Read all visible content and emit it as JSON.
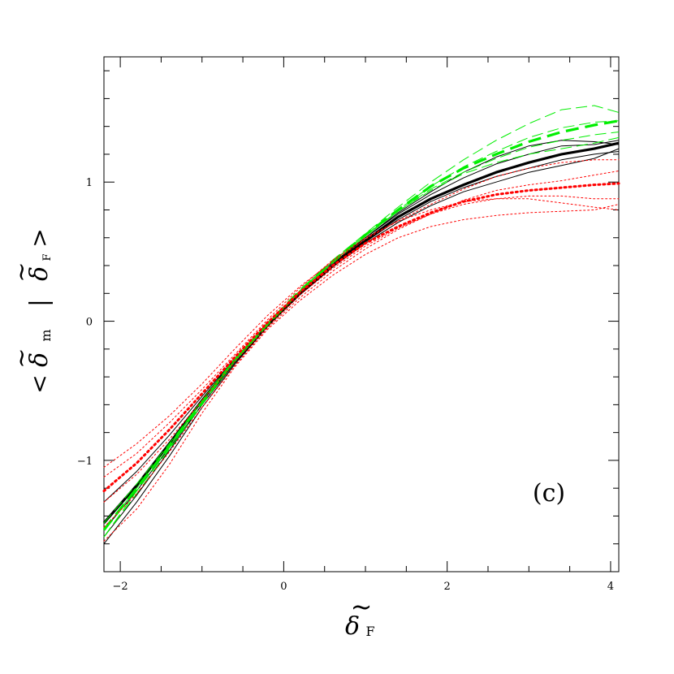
{
  "chart_data": {
    "type": "line",
    "title": "",
    "panel_label": "(c)",
    "xlabel": {
      "symbol": "δ",
      "accent": "~",
      "subscript": "F"
    },
    "ylabel": {
      "open": "<",
      "symbol1": "δ",
      "accent1": "~",
      "subscript1": "m",
      "bar": "|",
      "symbol2": "δ",
      "accent2": "~",
      "subscript2": "F",
      "close": ">"
    },
    "xlim": [
      -2.2,
      4.1
    ],
    "ylim": [
      -1.8,
      1.9
    ],
    "x_ticks": [
      -2,
      0,
      2,
      4
    ],
    "x_tick_labels": [
      "−2",
      "0",
      "2",
      "4"
    ],
    "y_ticks": [
      -1,
      0,
      1
    ],
    "y_tick_labels": [
      "−1",
      "0",
      "1"
    ],
    "x_minor_step": 0.5,
    "y_minor_step": 0.2,
    "grid": false,
    "legend": "none",
    "series": [
      {
        "color": "#000000",
        "width": 3.2,
        "dash": "",
        "opacity": 1,
        "x": [
          -2.2,
          -1.8,
          -1.4,
          -1.0,
          -0.6,
          -0.2,
          0.2,
          0.6,
          1.0,
          1.4,
          1.8,
          2.2,
          2.6,
          3.0,
          3.4,
          3.8,
          4.1
        ],
        "y": [
          -1.45,
          -1.18,
          -0.88,
          -0.57,
          -0.28,
          -0.03,
          0.2,
          0.4,
          0.58,
          0.75,
          0.88,
          0.98,
          1.07,
          1.14,
          1.2,
          1.24,
          1.28
        ]
      },
      {
        "color": "#000000",
        "width": 1,
        "dash": "",
        "opacity": 1,
        "x": [
          -2.2,
          -1.8,
          -1.4,
          -1.0,
          -0.6,
          -0.2,
          0.2,
          0.6,
          1.0,
          1.4,
          1.8,
          2.2,
          2.6,
          3.0,
          3.4,
          3.8,
          4.1
        ],
        "y": [
          -1.3,
          -1.08,
          -0.82,
          -0.54,
          -0.27,
          -0.02,
          0.21,
          0.42,
          0.6,
          0.77,
          0.91,
          1.03,
          1.13,
          1.2,
          1.26,
          1.27,
          1.3
        ]
      },
      {
        "color": "#000000",
        "width": 1,
        "dash": "",
        "opacity": 1,
        "x": [
          -2.2,
          -1.8,
          -1.4,
          -1.0,
          -0.6,
          -0.2,
          0.2,
          0.6,
          1.0,
          1.4,
          1.8,
          2.2,
          2.6,
          3.0,
          3.4,
          3.8,
          4.1
        ],
        "y": [
          -1.55,
          -1.25,
          -0.93,
          -0.6,
          -0.3,
          -0.04,
          0.19,
          0.39,
          0.57,
          0.73,
          0.86,
          0.96,
          1.04,
          1.1,
          1.16,
          1.2,
          1.22
        ]
      },
      {
        "color": "#000000",
        "width": 1,
        "dash": "",
        "opacity": 1,
        "x": [
          -2.2,
          -1.8,
          -1.4,
          -1.0,
          -0.6,
          -0.2,
          0.2,
          0.6,
          1.0,
          1.4,
          1.8,
          2.2,
          2.6,
          3.0,
          3.4,
          3.8,
          4.1
        ],
        "y": [
          -1.5,
          -1.22,
          -0.91,
          -0.6,
          -0.29,
          -0.03,
          0.2,
          0.41,
          0.6,
          0.78,
          0.93,
          1.07,
          1.18,
          1.26,
          1.3,
          1.29,
          1.27
        ]
      },
      {
        "color": "#000000",
        "width": 1,
        "dash": "",
        "opacity": 1,
        "x": [
          -2.2,
          -1.8,
          -1.4,
          -1.0,
          -0.6,
          -0.2,
          0.2,
          0.6,
          1.0,
          1.4,
          1.8,
          2.2,
          2.6,
          3.0,
          3.4,
          3.8,
          4.1
        ],
        "y": [
          -1.6,
          -1.3,
          -0.97,
          -0.62,
          -0.31,
          -0.04,
          0.19,
          0.39,
          0.56,
          0.71,
          0.83,
          0.93,
          1.0,
          1.07,
          1.12,
          1.17,
          1.24
        ]
      },
      {
        "color": "#00ee00",
        "width": 3.2,
        "dash": "16 8",
        "opacity": 1,
        "x": [
          -2.2,
          -1.8,
          -1.4,
          -1.0,
          -0.6,
          -0.2,
          0.2,
          0.6,
          1.0,
          1.4,
          1.8,
          2.2,
          2.6,
          3.0,
          3.4,
          3.8,
          4.1
        ],
        "y": [
          -1.5,
          -1.2,
          -0.9,
          -0.58,
          -0.28,
          -0.02,
          0.22,
          0.43,
          0.62,
          0.8,
          0.97,
          1.1,
          1.2,
          1.29,
          1.36,
          1.41,
          1.44
        ]
      },
      {
        "color": "#00ee00",
        "width": 1,
        "dash": "14 6",
        "opacity": 1,
        "x": [
          -2.2,
          -1.8,
          -1.4,
          -1.0,
          -0.6,
          -0.2,
          0.2,
          0.6,
          1.0,
          1.4,
          1.8,
          2.2,
          2.6,
          3.0,
          3.4,
          3.8,
          4.1
        ],
        "y": [
          -1.55,
          -1.22,
          -0.9,
          -0.58,
          -0.28,
          -0.02,
          0.22,
          0.44,
          0.63,
          0.82,
          1.0,
          1.16,
          1.3,
          1.42,
          1.52,
          1.55,
          1.5
        ]
      },
      {
        "color": "#00ee00",
        "width": 1,
        "dash": "14 6",
        "opacity": 1,
        "x": [
          -2.2,
          -1.8,
          -1.4,
          -1.0,
          -0.6,
          -0.2,
          0.2,
          0.6,
          1.0,
          1.4,
          1.8,
          2.2,
          2.6,
          3.0,
          3.4,
          3.8,
          4.1
        ],
        "y": [
          -1.5,
          -1.2,
          -0.89,
          -0.57,
          -0.27,
          -0.02,
          0.22,
          0.43,
          0.62,
          0.79,
          0.95,
          1.07,
          1.17,
          1.25,
          1.3,
          1.34,
          1.36
        ]
      },
      {
        "color": "#00ee00",
        "width": 1,
        "dash": "14 6",
        "opacity": 1,
        "x": [
          -2.2,
          -1.8,
          -1.4,
          -1.0,
          -0.6,
          -0.2,
          0.2,
          0.6,
          1.0,
          1.4,
          1.8,
          2.2,
          2.6,
          3.0,
          3.4,
          3.8,
          4.1
        ],
        "y": [
          -1.45,
          -1.17,
          -0.88,
          -0.57,
          -0.28,
          -0.02,
          0.22,
          0.43,
          0.62,
          0.8,
          0.97,
          1.11,
          1.22,
          1.32,
          1.39,
          1.43,
          1.44
        ]
      },
      {
        "color": "#00ee00",
        "width": 1,
        "dash": "14 6",
        "opacity": 1,
        "x": [
          -2.2,
          -1.8,
          -1.4,
          -1.0,
          -0.6,
          -0.2,
          0.2,
          0.6,
          1.0,
          1.4,
          1.8,
          2.2,
          2.6,
          3.0,
          3.4,
          3.8,
          4.1
        ],
        "y": [
          -1.55,
          -1.24,
          -0.92,
          -0.6,
          -0.29,
          -0.03,
          0.21,
          0.42,
          0.61,
          0.79,
          0.94,
          1.06,
          1.14,
          1.2,
          1.24,
          1.28,
          1.32
        ]
      },
      {
        "color": "#ff0000",
        "width": 3,
        "dash": "2 4",
        "opacity": 1,
        "x": [
          -2.2,
          -1.8,
          -1.4,
          -1.0,
          -0.6,
          -0.2,
          0.2,
          0.6,
          1.0,
          1.4,
          1.8,
          2.2,
          2.6,
          3.0,
          3.4,
          3.8,
          4.1
        ],
        "y": [
          -1.22,
          -1.02,
          -0.78,
          -0.52,
          -0.26,
          -0.01,
          0.21,
          0.4,
          0.56,
          0.68,
          0.78,
          0.86,
          0.91,
          0.94,
          0.96,
          0.98,
          0.99
        ]
      },
      {
        "color": "#ff0000",
        "width": 1,
        "dash": "2 3",
        "opacity": 1,
        "x": [
          -2.2,
          -1.8,
          -1.4,
          -1.0,
          -0.6,
          -0.2,
          0.2,
          0.6,
          1.0,
          1.4,
          1.8,
          2.2,
          2.6,
          3.0,
          3.4,
          3.8,
          4.1
        ],
        "y": [
          -1.05,
          -0.88,
          -0.68,
          -0.45,
          -0.2,
          0.04,
          0.25,
          0.43,
          0.59,
          0.72,
          0.84,
          0.95,
          1.04,
          1.1,
          1.14,
          1.16,
          1.16
        ]
      },
      {
        "color": "#ff0000",
        "width": 1,
        "dash": "2 3",
        "opacity": 1,
        "x": [
          -2.2,
          -1.8,
          -1.4,
          -1.0,
          -0.6,
          -0.2,
          0.2,
          0.6,
          1.0,
          1.4,
          1.8,
          2.2,
          2.6,
          3.0,
          3.4,
          3.8,
          4.1
        ],
        "y": [
          -1.12,
          -0.95,
          -0.73,
          -0.49,
          -0.24,
          0.01,
          0.24,
          0.44,
          0.6,
          0.72,
          0.8,
          0.86,
          0.88,
          0.88,
          0.85,
          0.82,
          0.8
        ]
      },
      {
        "color": "#ff0000",
        "width": 1,
        "dash": "2 3",
        "opacity": 1,
        "x": [
          -2.2,
          -1.8,
          -1.4,
          -1.0,
          -0.6,
          -0.2,
          0.2,
          0.6,
          1.0,
          1.4,
          1.8,
          2.2,
          2.6,
          3.0,
          3.4,
          3.8,
          4.1
        ],
        "y": [
          -1.58,
          -1.35,
          -1.03,
          -0.66,
          -0.33,
          -0.06,
          0.15,
          0.33,
          0.48,
          0.6,
          0.68,
          0.73,
          0.76,
          0.78,
          0.79,
          0.8,
          0.84
        ]
      },
      {
        "color": "#ff0000",
        "width": 1,
        "dash": "2 3",
        "opacity": 1,
        "x": [
          -2.2,
          -1.8,
          -1.4,
          -1.0,
          -0.6,
          -0.2,
          0.2,
          0.6,
          1.0,
          1.4,
          1.8,
          2.2,
          2.6,
          3.0,
          3.4,
          3.8,
          4.1
        ],
        "y": [
          -1.48,
          -1.24,
          -0.94,
          -0.62,
          -0.32,
          -0.05,
          0.17,
          0.36,
          0.52,
          0.66,
          0.77,
          0.87,
          0.94,
          0.98,
          1.01,
          1.05,
          1.08
        ]
      },
      {
        "color": "#ff0000",
        "width": 1,
        "dash": "2 3",
        "opacity": 1,
        "x": [
          -2.2,
          -1.8,
          -1.4,
          -1.0,
          -0.6,
          -0.2,
          0.2,
          0.6,
          1.0,
          1.4,
          1.8,
          2.2,
          2.6,
          3.0,
          3.4,
          3.8,
          4.1
        ],
        "y": [
          -1.3,
          -1.1,
          -0.85,
          -0.57,
          -0.29,
          -0.04,
          0.19,
          0.38,
          0.54,
          0.67,
          0.77,
          0.84,
          0.88,
          0.9,
          0.9,
          0.88,
          0.88
        ]
      }
    ]
  }
}
